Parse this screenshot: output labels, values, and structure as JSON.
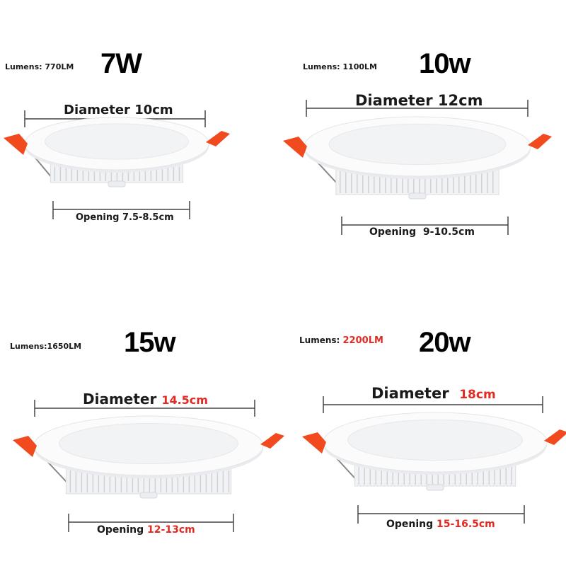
{
  "highlight_color": "#e02a22",
  "clip_color": "#f04a1e",
  "panels": [
    {
      "wattage": "7W",
      "lumens_label": "Lumens:",
      "lumens_value": "770LM",
      "diameter_label": "Diameter",
      "diameter_value": "10cm",
      "opening_label": "Opening",
      "opening_value": "7.5-8.5cm",
      "values_highlighted": false
    },
    {
      "wattage": "10w",
      "lumens_label": "Lumens:",
      "lumens_value": "1100LM",
      "diameter_label": "Diameter",
      "diameter_value": "12cm",
      "opening_label": "Opening",
      "opening_value": "9-10.5cm",
      "values_highlighted": false
    },
    {
      "wattage": "15w",
      "lumens_label": "Lumens:",
      "lumens_value": "1650LM",
      "diameter_label": "Diameter",
      "diameter_value": "14.5cm",
      "opening_label": "Opening",
      "opening_value": "12-13cm",
      "values_highlighted": true
    },
    {
      "wattage": "20w",
      "lumens_label": "Lumens:",
      "lumens_value": "2200LM",
      "diameter_label": "Diameter",
      "diameter_value": "18cm",
      "opening_label": "Opening",
      "opening_value": "15-16.5cm",
      "values_highlighted": true
    }
  ]
}
